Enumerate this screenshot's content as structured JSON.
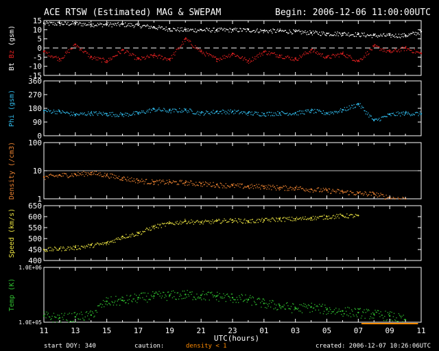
{
  "header": {
    "title": "ACE RTSW (Estimated) MAG & SWEPAM",
    "begin": "Begin: 2006-12-06 11:00:00UTC"
  },
  "footer": {
    "start_doy": "start DOY: 340",
    "caution": "caution:",
    "density_note": "density < 1",
    "created": "created: 2006-12-07 10:26:06UTC"
  },
  "colors": {
    "background": "#000000",
    "frame": "#ffffff",
    "bt": "#ffffff",
    "bz": "#e02020",
    "phi": "#30b8e8",
    "density": "#e88030",
    "speed": "#e8e040",
    "temp": "#30c030",
    "caution_bar": "#ff8a00"
  },
  "chart_data": [
    {
      "type": "scatter",
      "panel": "mag",
      "ylabel_parts": [
        "Bt",
        "Bz",
        "(gsm)"
      ],
      "ylim": [
        -15,
        15
      ],
      "yticks": [
        15,
        10,
        5,
        0,
        -5,
        -10,
        -15
      ],
      "series": [
        {
          "name": "Bt",
          "color": "#ffffff",
          "x": [
            0,
            1,
            2,
            3,
            4,
            5,
            6,
            7,
            8,
            9,
            10,
            11,
            12,
            13,
            14,
            15,
            16,
            17,
            18,
            19,
            20,
            21,
            22,
            23,
            24
          ],
          "y": [
            13.5,
            13.5,
            13.5,
            13,
            13,
            13,
            12.5,
            11.5,
            10.5,
            10,
            10,
            10,
            10,
            10,
            9.5,
            9.5,
            9,
            8.5,
            8,
            8,
            7.5,
            7,
            7,
            7,
            9
          ]
        },
        {
          "name": "Bz",
          "color": "#e02020",
          "x": [
            0,
            1,
            2,
            3,
            4,
            5,
            6,
            7,
            8,
            9,
            10,
            11,
            12,
            13,
            14,
            15,
            16,
            17,
            18,
            19,
            20,
            21,
            22,
            23,
            24
          ],
          "y": [
            -2,
            -6,
            2,
            -5,
            -7,
            -1,
            -6,
            -4,
            -6,
            5,
            -2,
            -6,
            -3,
            -7,
            -2,
            -4,
            -6,
            -1,
            -5,
            -3,
            -7,
            1,
            -2,
            0,
            -3
          ]
        }
      ]
    },
    {
      "type": "scatter",
      "panel": "phi",
      "ylabel": "Phi (gsm)",
      "ylim": [
        0,
        360
      ],
      "yticks": [
        360,
        270,
        180,
        90,
        0
      ],
      "series": [
        {
          "name": "Phi",
          "color": "#30b8e8",
          "x": [
            0,
            1,
            2,
            3,
            4,
            5,
            6,
            7,
            8,
            9,
            10,
            11,
            12,
            13,
            14,
            15,
            16,
            17,
            18,
            19,
            20,
            21,
            22,
            23,
            24
          ],
          "y": [
            165,
            160,
            140,
            150,
            145,
            140,
            150,
            175,
            165,
            170,
            150,
            160,
            160,
            150,
            145,
            150,
            150,
            165,
            150,
            170,
            210,
            100,
            140,
            150,
            145
          ]
        }
      ]
    },
    {
      "type": "scatter",
      "panel": "density",
      "ylabel": "Density (/cm3)",
      "yscale": "log",
      "ylim": [
        1,
        100
      ],
      "yticks": [
        100,
        10,
        1
      ],
      "series": [
        {
          "name": "Density",
          "color": "#e88030",
          "x": [
            0,
            1,
            2,
            3,
            4,
            5,
            6,
            7,
            8,
            9,
            10,
            11,
            12,
            13,
            14,
            15,
            16,
            17,
            18,
            19,
            20,
            21,
            22,
            23
          ],
          "y": [
            6,
            7,
            7.5,
            8.5,
            7,
            5.5,
            4.5,
            4,
            4,
            3.8,
            3.5,
            3.2,
            3,
            2.8,
            2.8,
            2.5,
            2.5,
            2.2,
            2,
            1.8,
            1.6,
            1.5,
            1.1,
            1.0
          ]
        }
      ]
    },
    {
      "type": "scatter",
      "panel": "speed",
      "ylabel": "Speed (km/s)",
      "ylim": [
        400,
        650
      ],
      "yticks": [
        650,
        600,
        550,
        500,
        450,
        400
      ],
      "series": [
        {
          "name": "Speed",
          "color": "#e8e040",
          "x": [
            0,
            1,
            2,
            3,
            4,
            5,
            6,
            7,
            8,
            9,
            10,
            11,
            12,
            13,
            14,
            15,
            16,
            17,
            18,
            19,
            20
          ],
          "y": [
            450,
            455,
            460,
            470,
            480,
            510,
            525,
            555,
            570,
            580,
            575,
            580,
            585,
            580,
            585,
            590,
            590,
            595,
            600,
            605,
            605
          ]
        }
      ]
    },
    {
      "type": "scatter",
      "panel": "temp",
      "ylabel": "Temp (K)",
      "yscale": "log",
      "ylim": [
        100000,
        1000000
      ],
      "yticks_labels": [
        "1.0E+06",
        "1.0E+05"
      ],
      "series": [
        {
          "name": "Temp",
          "color": "#30c030",
          "x": [
            0,
            1,
            2,
            3,
            4,
            5,
            6,
            7,
            8,
            9,
            10,
            11,
            12,
            13,
            14,
            15,
            16,
            17,
            18,
            19,
            20,
            21,
            22,
            23
          ],
          "y": [
            130000,
            120000,
            125000,
            135000,
            240000,
            250000,
            280000,
            300000,
            310000,
            320000,
            310000,
            300000,
            280000,
            260000,
            220000,
            200000,
            180000,
            190000,
            170000,
            160000,
            150000,
            140000,
            130000,
            110000
          ]
        }
      ]
    }
  ],
  "x_axis": {
    "label": "UTC(hours)",
    "tick_labels": [
      "11",
      "13",
      "15",
      "17",
      "19",
      "21",
      "23",
      "01",
      "03",
      "05",
      "07",
      "09",
      "11"
    ],
    "range_hours": [
      0,
      24
    ]
  }
}
